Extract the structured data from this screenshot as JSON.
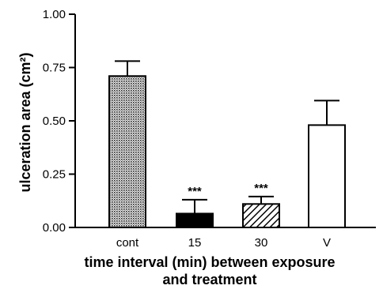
{
  "chart_data": {
    "type": "bar",
    "categories": [
      "cont",
      "15",
      "30",
      "V"
    ],
    "values": [
      0.71,
      0.065,
      0.11,
      0.48
    ],
    "errors": [
      0.07,
      0.065,
      0.035,
      0.115
    ],
    "annotations": [
      "",
      "***",
      "***",
      ""
    ],
    "bar_fills": [
      "dotted",
      "solid",
      "hatched",
      "open"
    ],
    "ylabel": "ulceration area (cm²)",
    "xlabel": [
      "time interval (min) between exposure",
      "and treatment"
    ],
    "ylim": [
      0,
      1.0
    ],
    "yticks": [
      "0.00",
      "0.25",
      "0.50",
      "0.75",
      "1.00"
    ],
    "ytick_values": [
      0,
      0.25,
      0.5,
      0.75,
      1.0
    ],
    "grid": false,
    "legend": "none",
    "colors": {
      "bar_edge": "#000000",
      "solid": "#000000",
      "open": "#ffffff"
    }
  }
}
